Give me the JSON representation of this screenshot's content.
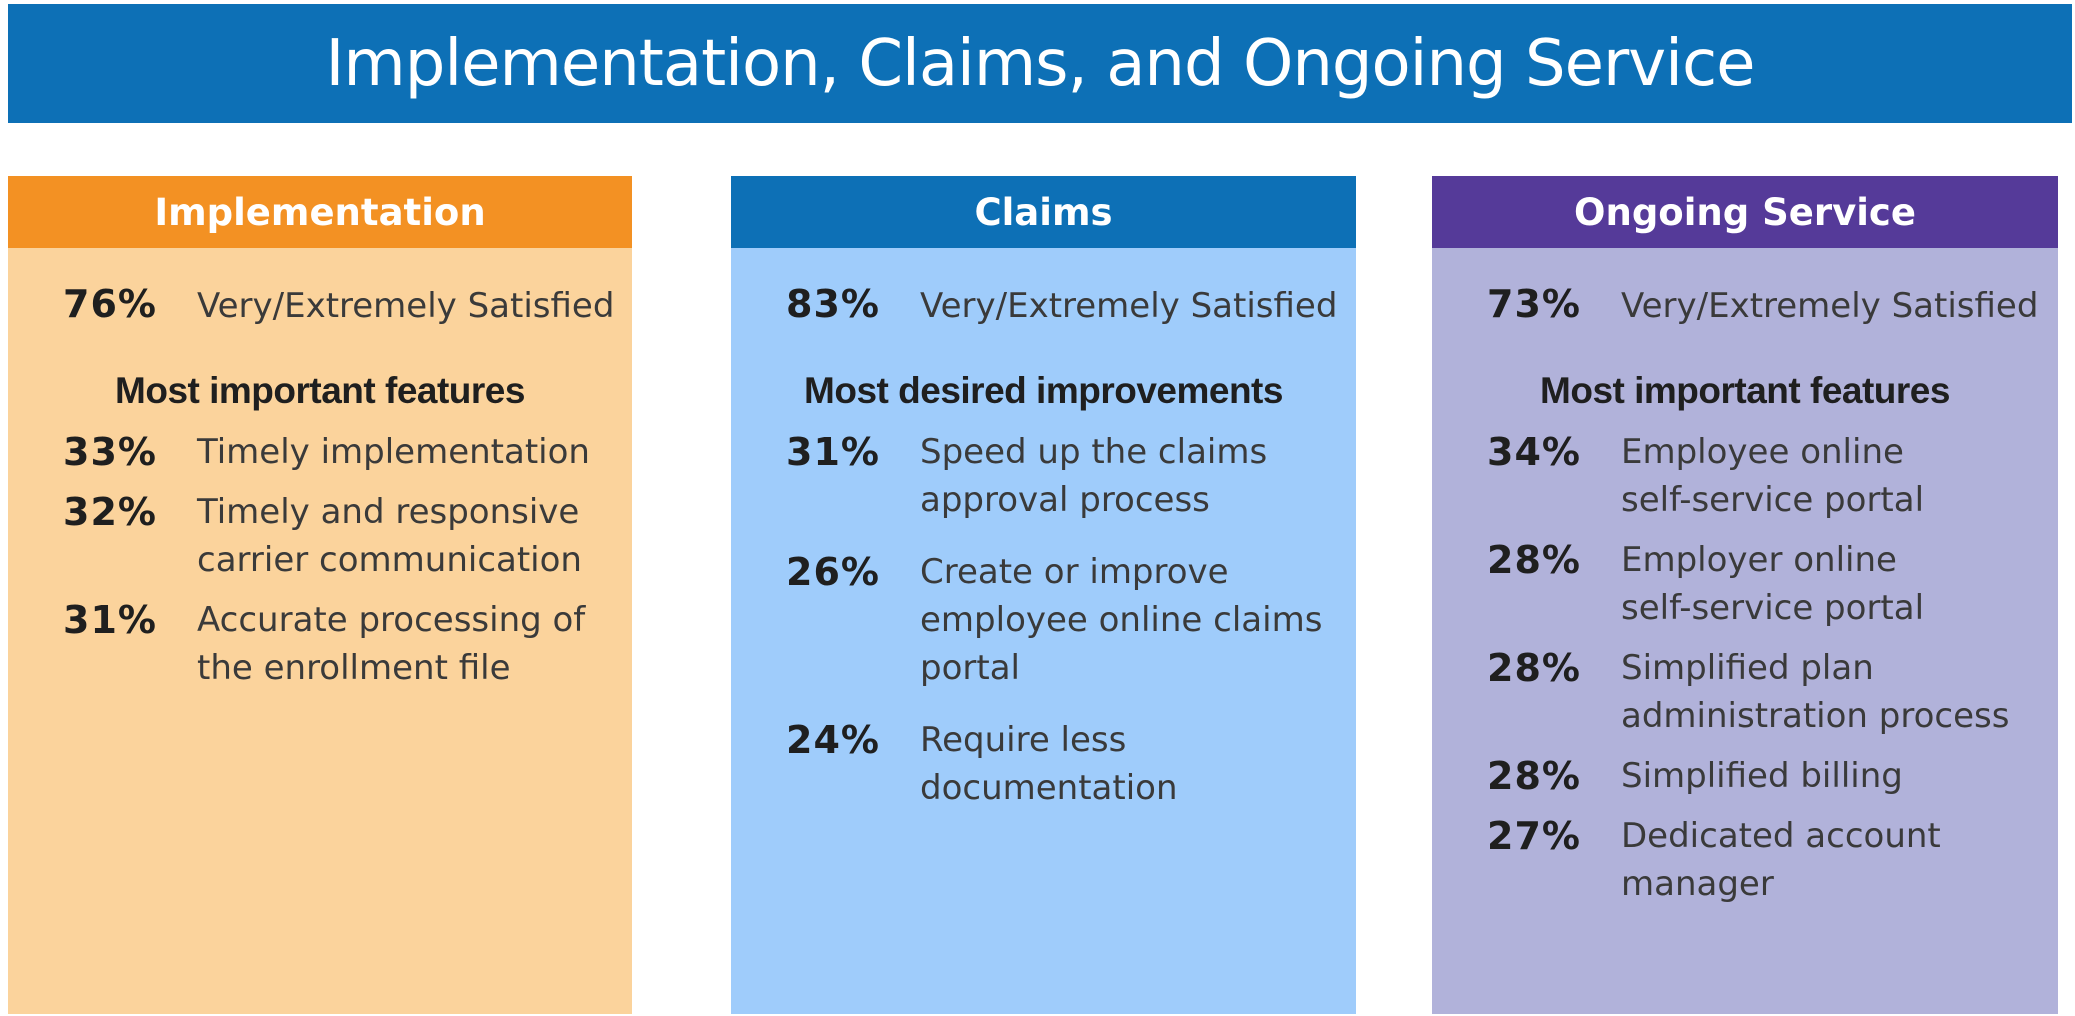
{
  "title": "Implementation, Claims, and Ongoing Service",
  "colors": {
    "title_banner": "#0d70b6",
    "implementation_header": "#f39123",
    "implementation_body": "#fbd39c",
    "claims_header": "#0d70b6",
    "claims_body": "#9fccfb",
    "ongoing_header": "#553a99",
    "ongoing_body": "#b1b2da"
  },
  "panels": [
    {
      "header": "Implementation",
      "satisfied_pct": "76%",
      "satisfied_label": "Very/Extremely Satisfied",
      "section_heading": "Most important features",
      "items": [
        {
          "pct": "33%",
          "lines": [
            "Timely implementation"
          ]
        },
        {
          "pct": "32%",
          "lines": [
            "Timely and responsive",
            "carrier communication"
          ]
        },
        {
          "pct": "31%",
          "lines": [
            "Accurate processing of",
            "the enrollment file"
          ]
        }
      ]
    },
    {
      "header": "Claims",
      "satisfied_pct": "83%",
      "satisfied_label": "Very/Extremely Satisfied",
      "section_heading": "Most desired improvements",
      "items": [
        {
          "pct": "31%",
          "lines": [
            "Speed up the claims",
            "approval process"
          ]
        },
        {
          "pct": "26%",
          "lines": [
            "Create or improve",
            "employee online claims",
            "portal"
          ]
        },
        {
          "pct": "24%",
          "lines": [
            "Require less",
            "documentation"
          ]
        }
      ]
    },
    {
      "header": "Ongoing Service",
      "satisfied_pct": "73%",
      "satisfied_label": "Very/Extremely Satisfied",
      "section_heading": "Most important features",
      "items": [
        {
          "pct": "34%",
          "lines": [
            "Employee online",
            "self-service portal"
          ]
        },
        {
          "pct": "28%",
          "lines": [
            "Employer online",
            "self-service portal"
          ]
        },
        {
          "pct": "28%",
          "lines": [
            "Simplified plan",
            "administration process"
          ]
        },
        {
          "pct": "28%",
          "lines": [
            "Simplified billing"
          ]
        },
        {
          "pct": "27%",
          "lines": [
            "Dedicated account",
            "manager"
          ]
        }
      ]
    }
  ]
}
